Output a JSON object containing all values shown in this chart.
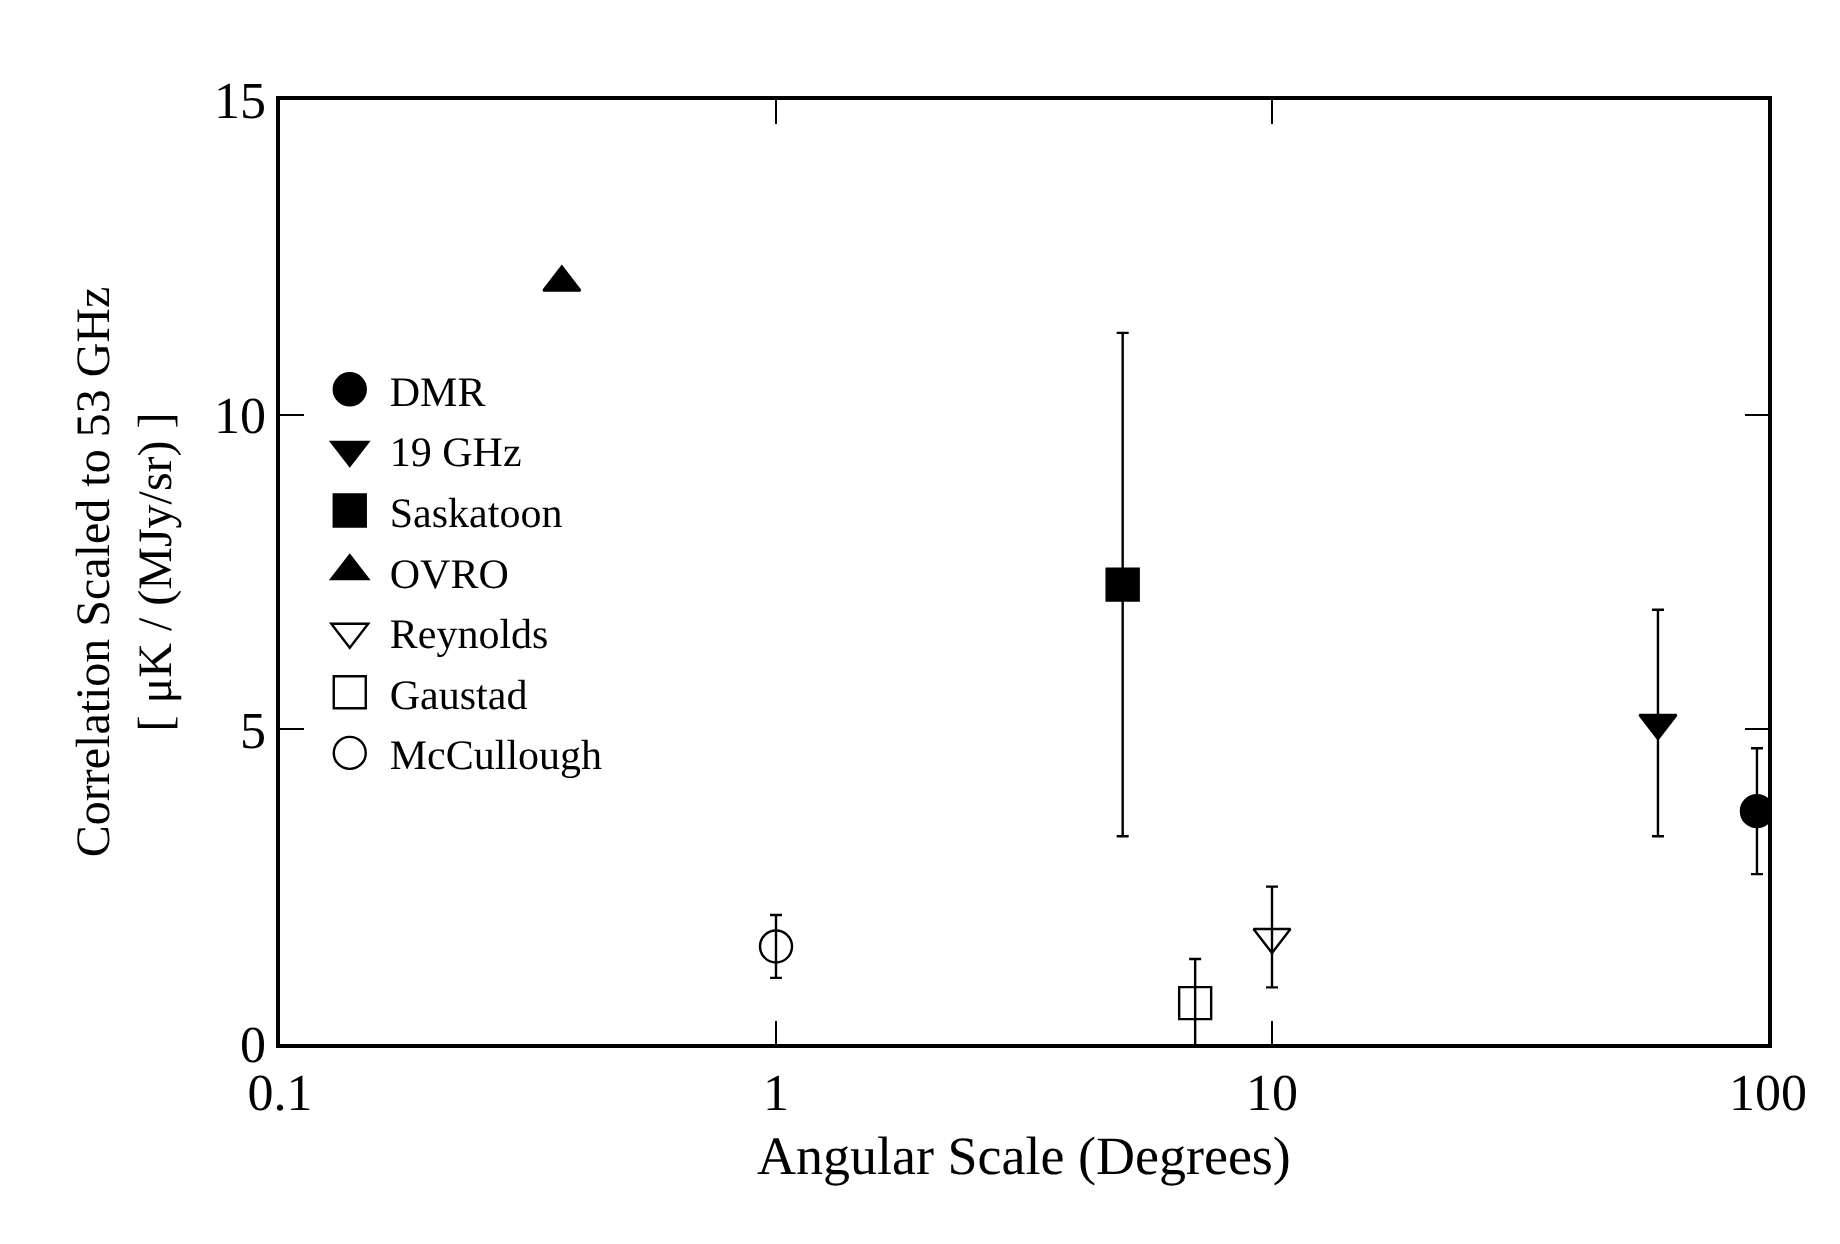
{
  "chart_data": {
    "type": "scatter",
    "xlabel": "Angular Scale (Degrees)",
    "ylabel": "Correlation Scaled to 53 GHz\n[ μK / (MJy/sr) ]",
    "log": "x",
    "xlim": [
      0.1,
      100
    ],
    "xticks": [
      0.1,
      1,
      10,
      100
    ],
    "ylim": [
      0,
      15
    ],
    "yticks": [
      0,
      5,
      10,
      15
    ],
    "grid": false,
    "legend": "left",
    "series": [
      {
        "name": "DMR",
        "color": "#000000",
        "marker": "circle",
        "x": [
          95
        ],
        "values": [
          3.7
        ],
        "errors": [
          1
        ]
      },
      {
        "name": "19 GHz",
        "color": "#000000",
        "marker": "triangle-down",
        "x": [
          60
        ],
        "values": [
          5.1
        ],
        "errors": [
          1.8
        ]
      },
      {
        "name": "Saskatoon",
        "color": "#000000",
        "marker": "square",
        "x": [
          5
        ],
        "values": [
          7.3
        ],
        "errors": [
          4
        ]
      },
      {
        "name": "OVRO",
        "color": "#000000",
        "marker": "triangle",
        "x": [
          0.37
        ],
        "values": [
          12.1
        ],
        "errors": [
          null
        ]
      },
      {
        "name": "Reynolds",
        "color": "#000000",
        "marker": "triangle-down-open",
        "x": [
          10
        ],
        "values": [
          1.7
        ],
        "errors": [
          0.8
        ]
      },
      {
        "name": "Gaustad",
        "color": "#000000",
        "marker": "square-open",
        "x": [
          7
        ],
        "values": [
          0.65
        ],
        "errors": [
          0.7
        ]
      },
      {
        "name": "McCullough",
        "color": "#000000",
        "marker": "circle-open",
        "x": [
          1
        ],
        "values": [
          1.55
        ],
        "errors": [
          0.5
        ]
      }
    ]
  }
}
